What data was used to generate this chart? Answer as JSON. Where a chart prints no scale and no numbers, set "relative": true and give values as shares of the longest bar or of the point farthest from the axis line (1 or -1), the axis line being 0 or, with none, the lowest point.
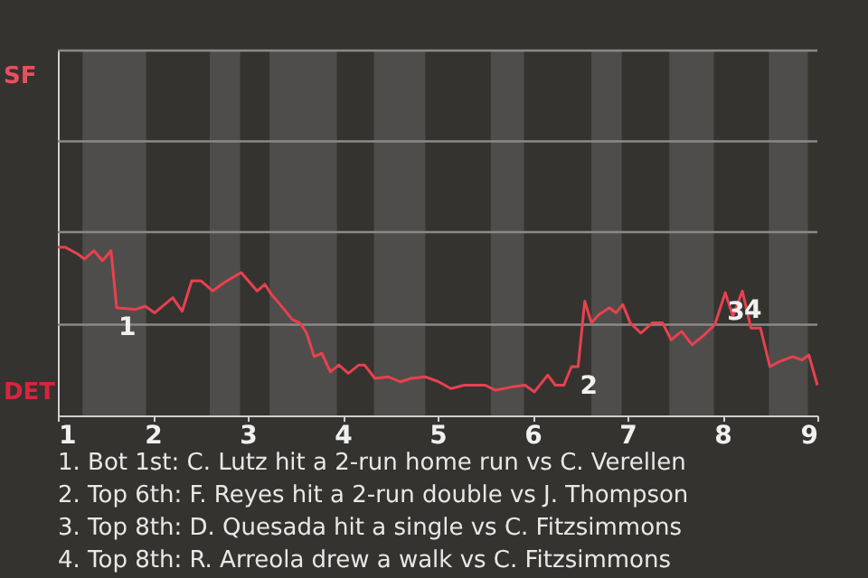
{
  "chart_data": {
    "type": "line",
    "x": [
      1,
      1.08,
      1.21,
      1.28,
      1.38,
      1.47,
      1.56,
      1.62,
      1.82,
      1.92,
      2.02,
      2.21,
      2.31,
      2.41,
      2.51,
      2.63,
      2.75,
      2.93,
      3.1,
      3.18,
      3.25,
      3.37,
      3.47,
      3.55,
      3.62,
      3.7,
      3.78,
      3.87,
      3.96,
      4.06,
      4.17,
      4.23,
      4.34,
      4.48,
      4.61,
      4.72,
      4.87,
      5.01,
      5.14,
      5.28,
      5.5,
      5.61,
      5.79,
      5.92,
      6.02,
      6.16,
      6.24,
      6.33,
      6.41,
      6.48,
      6.55,
      6.62,
      6.7,
      6.81,
      6.88,
      6.95,
      7.03,
      7.14,
      7.26,
      7.37,
      7.46,
      7.57,
      7.68,
      7.81,
      7.92,
      8.03,
      8.11,
      8.21,
      8.3,
      8.4,
      8.5,
      8.6,
      8.74,
      8.84,
      8.91,
      9
    ],
    "series": [
      {
        "color": "#e8414f",
        "values": [
          1,
          1,
          0.96,
          0.93,
          0.98,
          0.92,
          0.98,
          0.64,
          0.63,
          0.65,
          0.61,
          0.7,
          0.62,
          0.8,
          0.8,
          0.74,
          0.79,
          0.85,
          0.74,
          0.78,
          0.72,
          0.64,
          0.57,
          0.55,
          0.49,
          0.35,
          0.37,
          0.26,
          0.3,
          0.25,
          0.3,
          0.3,
          0.22,
          0.23,
          0.2,
          0.22,
          0.23,
          0.2,
          0.16,
          0.18,
          0.18,
          0.15,
          0.17,
          0.18,
          0.14,
          0.24,
          0.18,
          0.18,
          0.29,
          0.29,
          0.68,
          0.55,
          0.6,
          0.64,
          0.61,
          0.66,
          0.55,
          0.49,
          0.55,
          0.55,
          0.45,
          0.5,
          0.42,
          0.48,
          0.54,
          0.73,
          0.59,
          0.74,
          0.52,
          0.52,
          0.29,
          0.32,
          0.35,
          0.33,
          0.36,
          0.18
        ]
      }
    ],
    "xlim": [
      1,
      9
    ],
    "xticks": [
      1,
      2,
      3,
      4,
      5,
      6,
      7,
      8,
      9
    ],
    "relative": true,
    "ref_lines": [
      {
        "axis": "y",
        "value": 0.54,
        "color": "#8a8a88"
      },
      {
        "axis": "y",
        "value": 1.09,
        "color": "#8a8a88"
      },
      {
        "axis": "y",
        "value": 1.63,
        "color": "#8a8a88"
      },
      {
        "axis": "y",
        "value": 2.17,
        "color": "#8a8a88"
      }
    ],
    "marker": "none",
    "line_style": "solid",
    "bands": [
      {
        "axis": "x",
        "from": 1.26,
        "to": 1.93,
        "color": "#4e4d4b"
      },
      {
        "axis": "x",
        "from": 2.6,
        "to": 2.92,
        "color": "#4e4d4b"
      },
      {
        "axis": "x",
        "from": 3.23,
        "to": 3.94,
        "color": "#4e4d4b"
      },
      {
        "axis": "x",
        "from": 4.33,
        "to": 4.87,
        "color": "#4e4d4b"
      },
      {
        "axis": "x",
        "from": 5.56,
        "to": 5.91,
        "color": "#4e4d4b"
      },
      {
        "axis": "x",
        "from": 6.62,
        "to": 6.94,
        "color": "#4e4d4b"
      },
      {
        "axis": "x",
        "from": 7.44,
        "to": 7.91,
        "color": "#4e4d4b"
      },
      {
        "axis": "x",
        "from": 8.49,
        "to": 8.9,
        "color": "#4e4d4b"
      }
    ],
    "annotations": [
      {
        "text": "1",
        "x": 1.62,
        "y": 0.64
      },
      {
        "text": "2",
        "x": 6.48,
        "y": 0.29
      },
      {
        "text": "3",
        "x": 8.03,
        "y": 0.73
      },
      {
        "text": "4",
        "x": 8.21,
        "y": 0.74
      },
      "SF",
      "DET",
      "1. Bot 1st: C. Lutz hit a 2-run home run vs C. Verellen",
      "2. Top 6th: F. Reyes hit a 2-run double vs J. Thompson",
      "3. Top 8th: D. Quesada hit a single vs C. Fitzsimmons",
      "4. Top 8th: R. Arreola drew a walk vs C. Fitzsimmons"
    ]
  }
}
